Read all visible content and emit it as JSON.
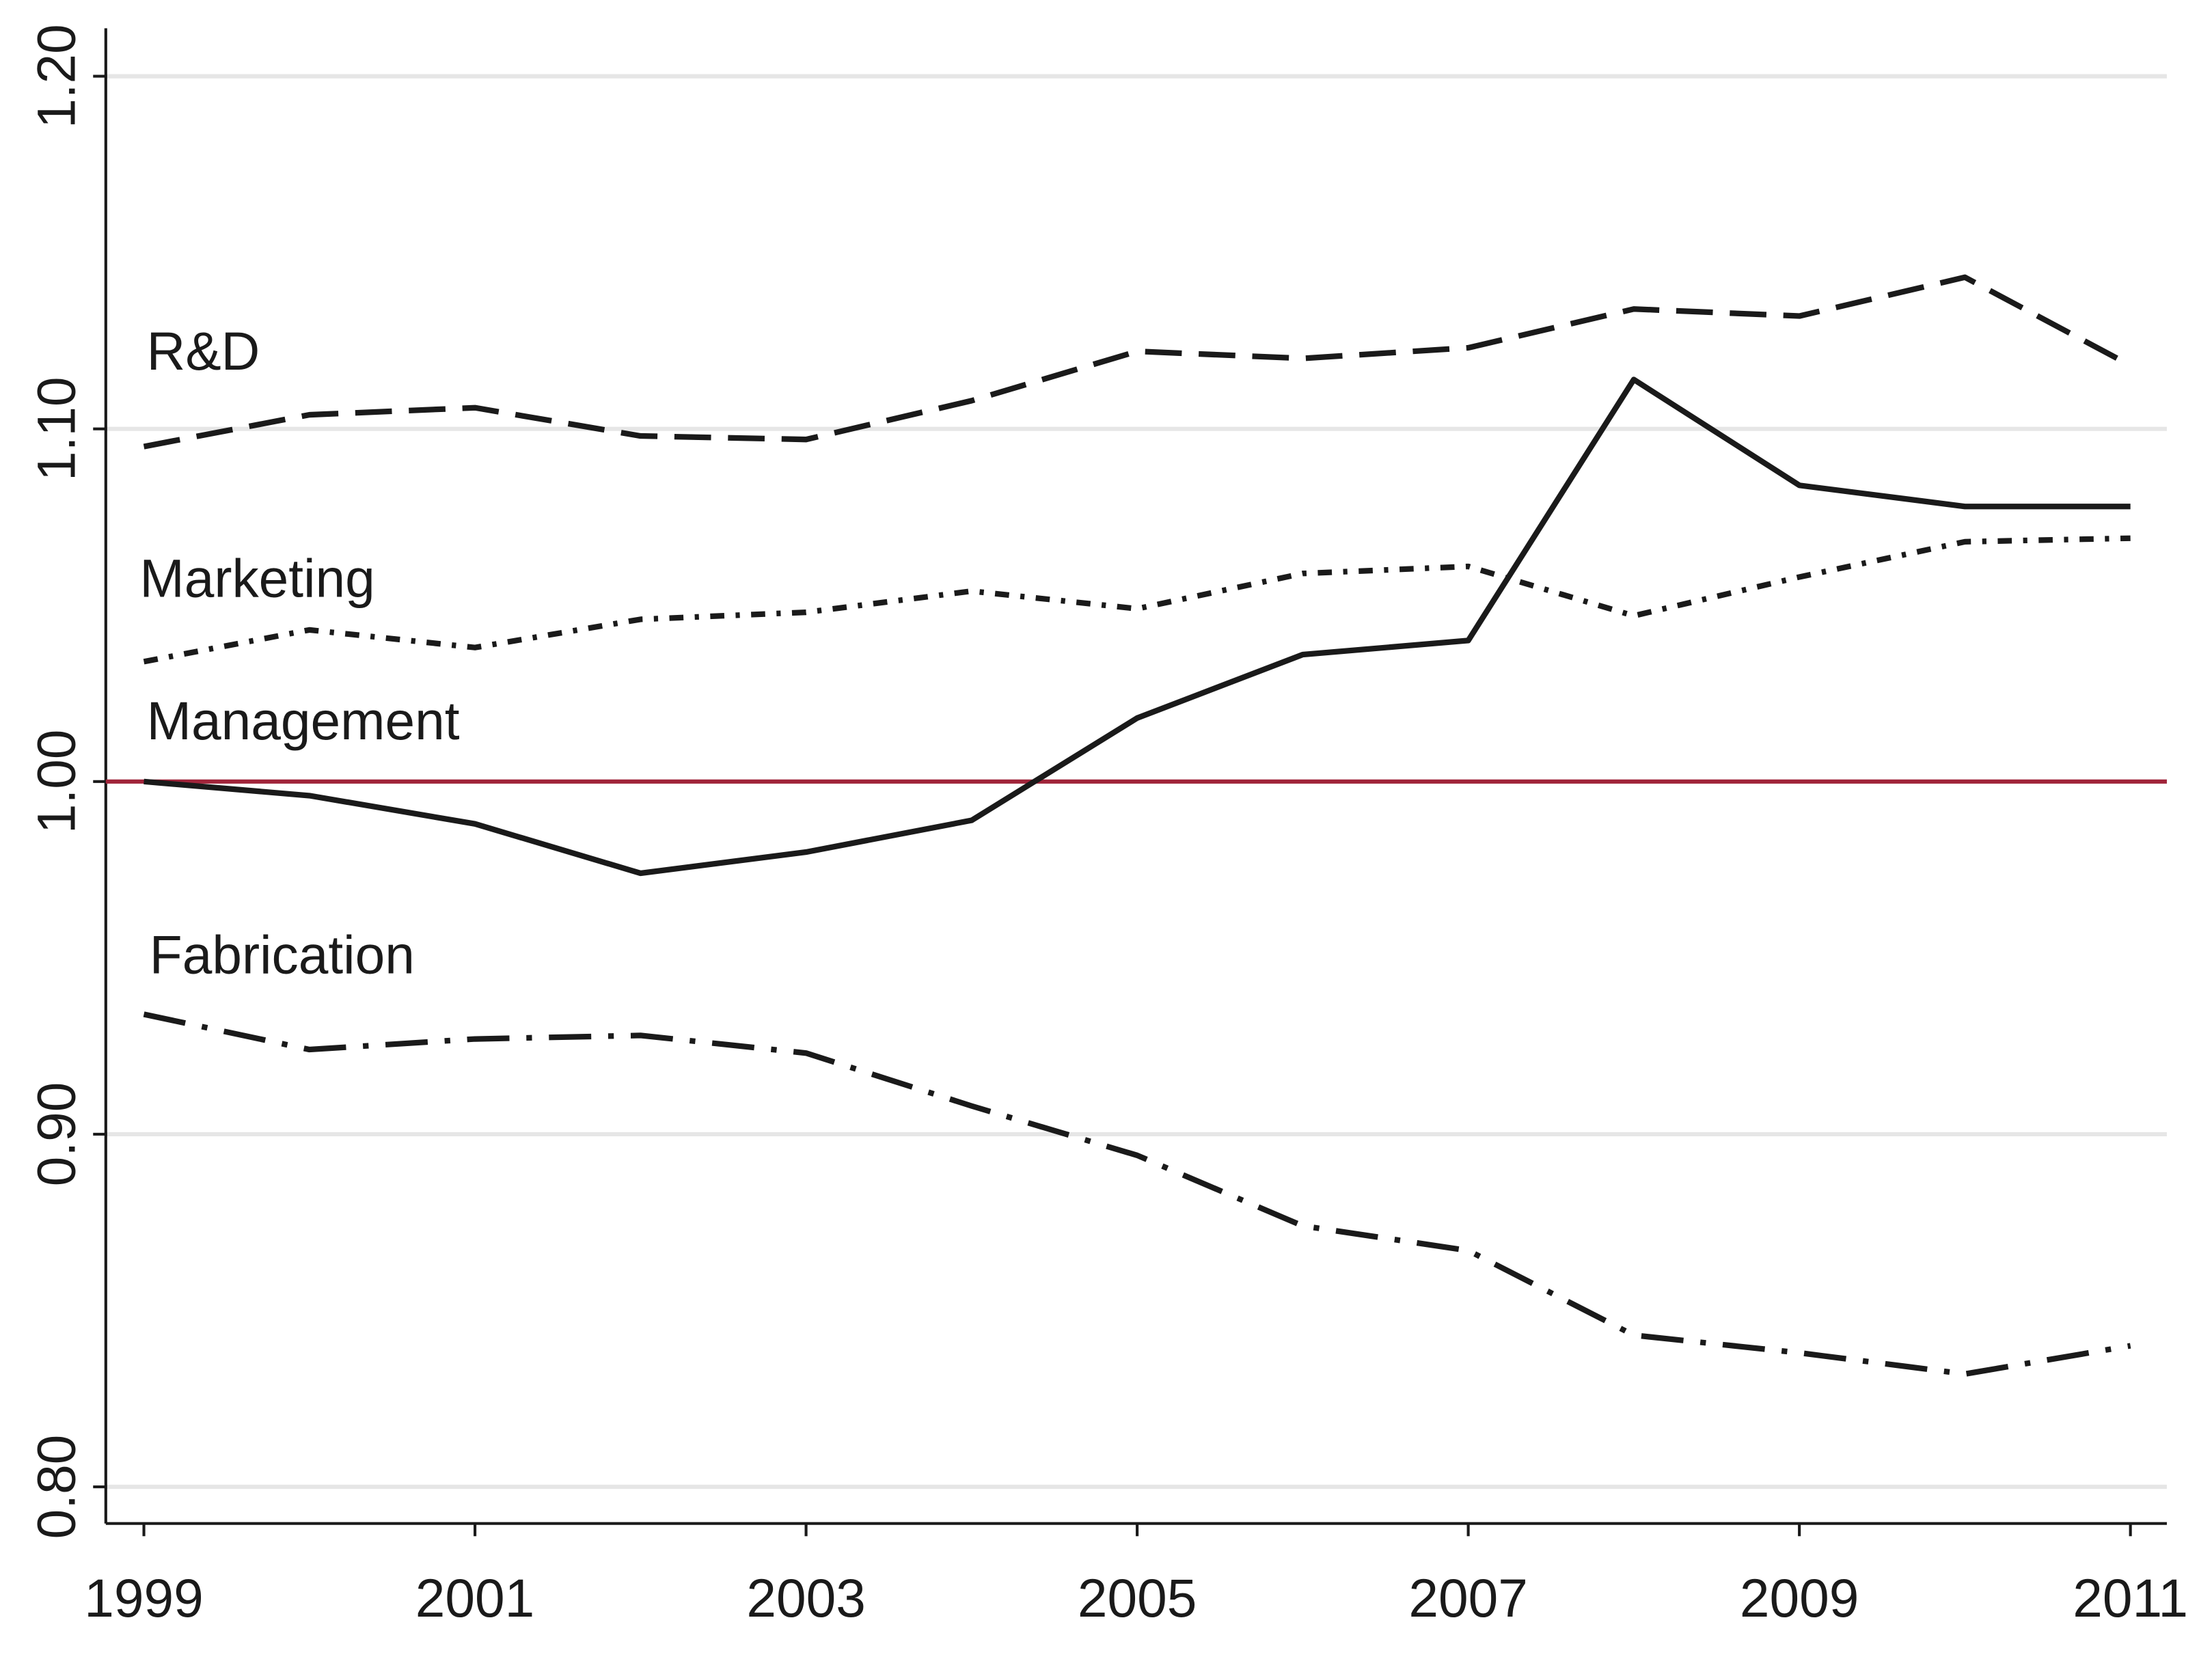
{
  "chart_data": {
    "type": "line",
    "x": [
      1999,
      2000,
      2001,
      2002,
      2003,
      2004,
      2005,
      2006,
      2007,
      2008,
      2009,
      2010,
      2011
    ],
    "series": [
      {
        "name": "R&D",
        "color": "#1a1a1a",
        "linestyle": "dashed",
        "values": [
          1.095,
          1.104,
          1.106,
          1.098,
          1.097,
          1.108,
          1.122,
          1.12,
          1.123,
          1.134,
          1.132,
          1.143,
          1.118
        ]
      },
      {
        "name": "Marketing",
        "color": "#1a1a1a",
        "linestyle": "dash-dot-dot",
        "values": [
          1.034,
          1.043,
          1.038,
          1.046,
          1.048,
          1.054,
          1.049,
          1.059,
          1.061,
          1.047,
          1.058,
          1.068,
          1.069
        ]
      },
      {
        "name": "Management",
        "color": "#1a1a1a",
        "linestyle": "solid",
        "values": [
          1.0,
          0.996,
          0.988,
          0.974,
          0.98,
          0.989,
          1.018,
          1.036,
          1.04,
          1.114,
          1.084,
          1.078,
          1.078
        ]
      },
      {
        "name": "Fabrication",
        "color": "#1a1a1a",
        "linestyle": "long-dash-dot",
        "values": [
          0.934,
          0.924,
          0.927,
          0.928,
          0.923,
          0.908,
          0.894,
          0.874,
          0.867,
          0.843,
          0.838,
          0.832,
          0.84
        ]
      }
    ],
    "reference_line": {
      "value": 1.0,
      "color": "#a0243a"
    },
    "xlim": [
      1998.77,
      2011.22
    ],
    "xticks": [
      1999,
      2001,
      2003,
      2005,
      2007,
      2009,
      2011
    ],
    "ylim": [
      0.7896,
      1.2136
    ],
    "yticks": [
      {
        "value": 0.8,
        "label": "0.80"
      },
      {
        "value": 0.9,
        "label": "0.90"
      },
      {
        "value": 1.0,
        "label": "1.00"
      },
      {
        "value": 1.1,
        "label": "1.10"
      },
      {
        "value": 1.2,
        "label": "1.20"
      }
    ],
    "grid": true
  }
}
